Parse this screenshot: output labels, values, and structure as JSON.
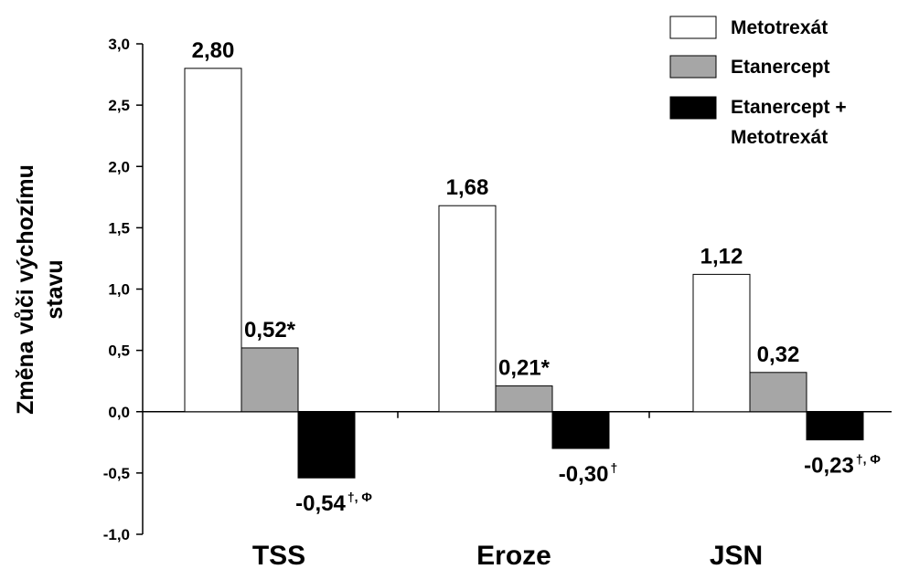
{
  "chart_data": {
    "type": "bar",
    "title": "",
    "ylabel_lines": [
      "Změna vůči výchozímu",
      "stavu"
    ],
    "xlabel": "",
    "ylim": [
      -1.0,
      3.0
    ],
    "yticks": [
      3.0,
      2.5,
      2.0,
      1.5,
      1.0,
      0.5,
      0.0,
      -0.5,
      -1.0
    ],
    "ytick_labels": [
      "3,0",
      "2,5",
      "2,0",
      "1,5",
      "1,0",
      "0,5",
      "0,0",
      "-0,5",
      "-1,0"
    ],
    "grid": false,
    "legend_position": "top-right",
    "categories": [
      "TSS",
      "Eroze",
      "JSN"
    ],
    "series": [
      {
        "name": "Metotrexát",
        "color": "#ffffff",
        "values": [
          2.8,
          1.68,
          1.12
        ],
        "labels": [
          {
            "main": "2,80",
            "sup": ""
          },
          {
            "main": "1,68",
            "sup": ""
          },
          {
            "main": "1,12",
            "sup": ""
          }
        ]
      },
      {
        "name": "Etanercept",
        "color": "#a6a6a6",
        "values": [
          0.52,
          0.21,
          0.32
        ],
        "labels": [
          {
            "main": "0,52*",
            "sup": ""
          },
          {
            "main": "0,21*",
            "sup": ""
          },
          {
            "main": "0,32",
            "sup": ""
          }
        ]
      },
      {
        "name": "Etanercept + Metotrexát",
        "legend_lines": [
          "Etanercept +",
          "Metotrexát"
        ],
        "color": "#000000",
        "values": [
          -0.54,
          -0.3,
          -0.23
        ],
        "labels": [
          {
            "main": "-0,54",
            "sup": "†, Φ"
          },
          {
            "main": "-0,30",
            "sup": "†"
          },
          {
            "main": "-0,23",
            "sup": "†, Φ"
          }
        ]
      }
    ]
  }
}
